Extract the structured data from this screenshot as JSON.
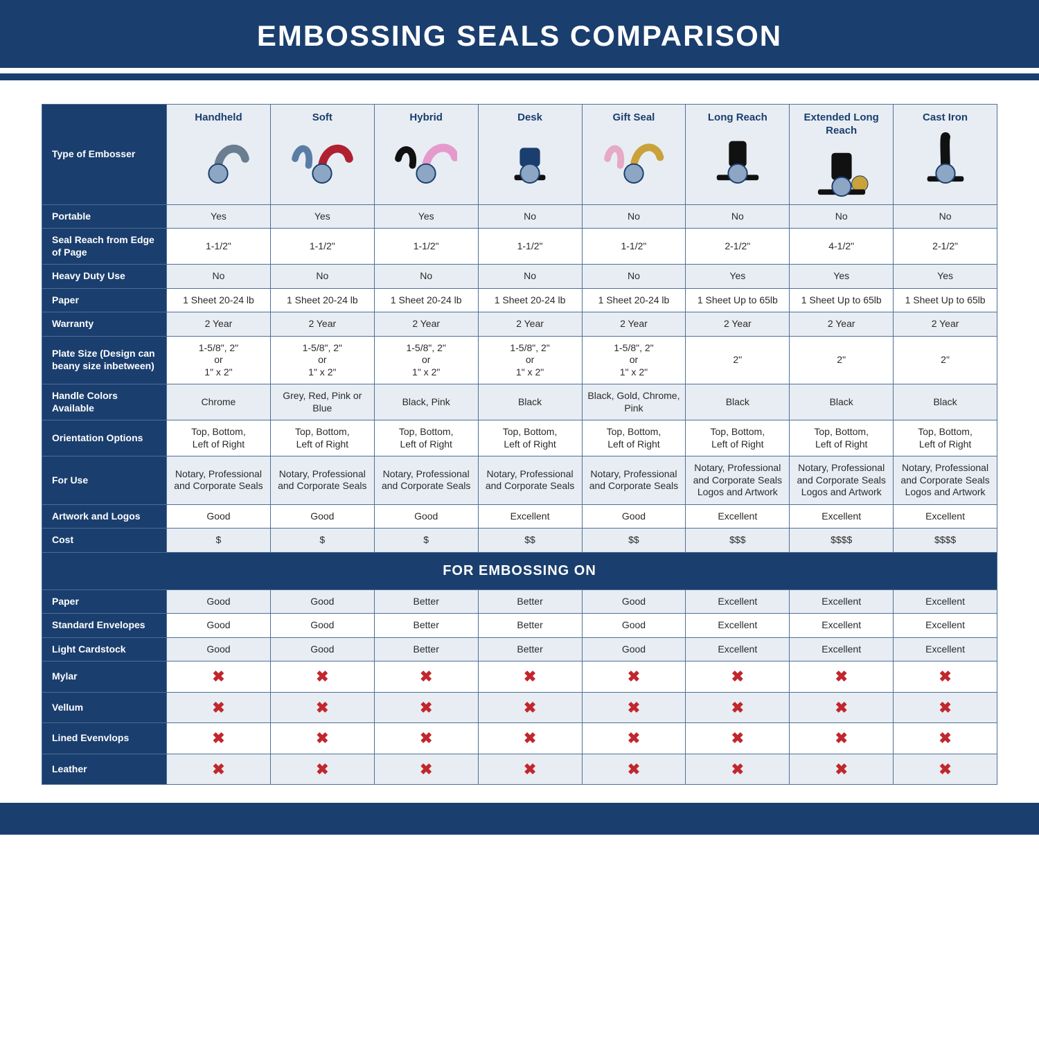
{
  "title": "EMBOSSING SEALS COMPARISON",
  "colors": {
    "brand": "#1a3e6e",
    "alt_bg": "#e8edf3",
    "text": "#2a2a2a",
    "white": "#ffffff",
    "x_red": "#c1272d",
    "border": "#4d6f97"
  },
  "table": {
    "type": "table",
    "header_label": "Type of Embosser",
    "columns": [
      {
        "label": "Handheld",
        "icon": "handheld"
      },
      {
        "label": "Soft",
        "icon": "soft"
      },
      {
        "label": "Hybrid",
        "icon": "hybrid"
      },
      {
        "label": "Desk",
        "icon": "desk"
      },
      {
        "label": "Gift Seal",
        "icon": "gift"
      },
      {
        "label": "Long Reach",
        "icon": "longreach"
      },
      {
        "label": "Extended Long Reach",
        "icon": "extlongreach"
      },
      {
        "label": "Cast Iron",
        "icon": "castiron"
      }
    ],
    "rows": [
      {
        "label": "Portable",
        "alt": true,
        "cells": [
          "Yes",
          "Yes",
          "Yes",
          "No",
          "No",
          "No",
          "No",
          "No"
        ]
      },
      {
        "label": "Seal Reach from Edge of Page",
        "alt": false,
        "cells": [
          "1-1/2\"",
          "1-1/2\"",
          "1-1/2\"",
          "1-1/2\"",
          "1-1/2\"",
          "2-1/2\"",
          "4-1/2\"",
          "2-1/2\""
        ]
      },
      {
        "label": "Heavy Duty Use",
        "alt": true,
        "cells": [
          "No",
          "No",
          "No",
          "No",
          "No",
          "Yes",
          "Yes",
          "Yes"
        ]
      },
      {
        "label": "Paper",
        "alt": false,
        "cells": [
          "1 Sheet 20-24 lb",
          "1 Sheet 20-24 lb",
          "1 Sheet 20-24 lb",
          "1 Sheet 20-24 lb",
          "1 Sheet 20-24 lb",
          "1 Sheet Up to 65lb",
          "1 Sheet Up to 65lb",
          "1 Sheet Up to 65lb"
        ]
      },
      {
        "label": "Warranty",
        "alt": true,
        "cells": [
          "2 Year",
          "2 Year",
          "2 Year",
          "2 Year",
          "2 Year",
          "2 Year",
          "2 Year",
          "2 Year"
        ]
      },
      {
        "label": "Plate Size (Design can beany size inbetween)",
        "alt": false,
        "cells": [
          "1-5/8\", 2\"\nor\n1\" x 2\"",
          "1-5/8\", 2\"\nor\n1\" x 2\"",
          "1-5/8\", 2\"\nor\n1\" x 2\"",
          "1-5/8\", 2\"\nor\n1\" x 2\"",
          "1-5/8\", 2\"\nor\n1\" x 2\"",
          "2\"",
          "2\"",
          "2\""
        ]
      },
      {
        "label": "Handle Colors Available",
        "alt": true,
        "cells": [
          "Chrome",
          "Grey, Red, Pink or Blue",
          "Black, Pink",
          "Black",
          "Black, Gold, Chrome, Pink",
          "Black",
          "Black",
          "Black"
        ]
      },
      {
        "label": "Orientation Options",
        "alt": false,
        "cells": [
          "Top, Bottom,\nLeft of Right",
          "Top, Bottom,\nLeft of Right",
          "Top, Bottom,\nLeft of Right",
          "Top, Bottom,\nLeft of Right",
          "Top, Bottom,\nLeft of Right",
          "Top, Bottom,\nLeft of Right",
          "Top, Bottom,\nLeft of Right",
          "Top, Bottom,\nLeft of Right"
        ]
      },
      {
        "label": "For Use",
        "alt": true,
        "cells": [
          "Notary, Professional and Corporate Seals",
          "Notary, Professional and Corporate Seals",
          "Notary, Professional and Corporate Seals",
          "Notary, Professional and Corporate Seals",
          "Notary, Professional and Corporate Seals",
          "Notary, Professional and Corporate Seals Logos and Artwork",
          "Notary, Professional and Corporate Seals Logos and Artwork",
          "Notary, Professional and Corporate Seals Logos and Artwork"
        ]
      },
      {
        "label": "Artwork and Logos",
        "alt": false,
        "cells": [
          "Good",
          "Good",
          "Good",
          "Excellent",
          "Good",
          "Excellent",
          "Excellent",
          "Excellent"
        ]
      },
      {
        "label": "Cost",
        "alt": true,
        "cells": [
          "$",
          "$",
          "$",
          "$$",
          "$$",
          "$$$",
          "$$$$",
          "$$$$"
        ]
      }
    ],
    "section_header": "FOR EMBOSSING ON",
    "rows2": [
      {
        "label": "Paper",
        "alt": true,
        "cells": [
          "Good",
          "Good",
          "Better",
          "Better",
          "Good",
          "Excellent",
          "Excellent",
          "Excellent"
        ]
      },
      {
        "label": "Standard Envelopes",
        "alt": false,
        "cells": [
          "Good",
          "Good",
          "Better",
          "Better",
          "Good",
          "Excellent",
          "Excellent",
          "Excellent"
        ]
      },
      {
        "label": "Light Cardstock",
        "alt": true,
        "cells": [
          "Good",
          "Good",
          "Better",
          "Better",
          "Good",
          "Excellent",
          "Excellent",
          "Excellent"
        ]
      },
      {
        "label": "Mylar",
        "alt": false,
        "cells": [
          "X",
          "X",
          "X",
          "X",
          "X",
          "X",
          "X",
          "X"
        ]
      },
      {
        "label": "Vellum",
        "alt": true,
        "cells": [
          "X",
          "X",
          "X",
          "X",
          "X",
          "X",
          "X",
          "X"
        ]
      },
      {
        "label": "Lined Evenvlops",
        "alt": false,
        "cells": [
          "X",
          "X",
          "X",
          "X",
          "X",
          "X",
          "X",
          "X"
        ]
      },
      {
        "label": "Leather",
        "alt": true,
        "cells": [
          "X",
          "X",
          "X",
          "X",
          "X",
          "X",
          "X",
          "X"
        ]
      }
    ]
  }
}
